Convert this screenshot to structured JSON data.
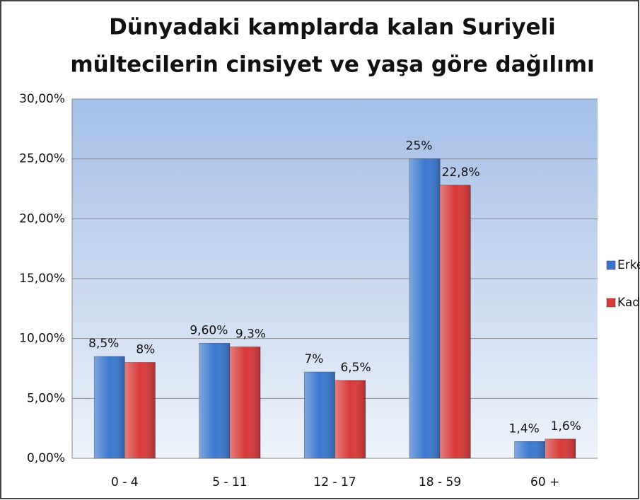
{
  "chart_data": {
    "type": "bar",
    "title": [
      "Dünyadaki kamplarda kalan Suriyeli",
      "mültecilerin cinsiyet ve yaşa göre dağılımı"
    ],
    "categories": [
      "0 - 4",
      "5 - 11",
      "12 - 17",
      "18 - 59",
      "60 +"
    ],
    "series": [
      {
        "name": "Erkek",
        "color": "#3c78d0",
        "values": [
          8.5,
          9.6,
          7.2,
          25,
          1.4
        ],
        "value_labels": [
          "8,5%",
          "9,60%",
          "7%",
          "25%",
          "1,4%"
        ]
      },
      {
        "name": "Kadın",
        "color": "#d83a3a",
        "values": [
          8,
          9.3,
          6.5,
          22.8,
          1.6
        ],
        "value_labels": [
          "8%",
          "9,3%",
          "6,5%",
          "22,8%",
          "1,6%"
        ]
      }
    ],
    "ylim": [
      0,
      30
    ],
    "yticks": [
      {
        "value": 0,
        "label": "0,00%"
      },
      {
        "value": 5,
        "label": "5,00%"
      },
      {
        "value": 10,
        "label": "10,00%"
      },
      {
        "value": 15,
        "label": "15,00%"
      },
      {
        "value": 20,
        "label": "20,00%"
      },
      {
        "value": 25,
        "label": "25,00%"
      },
      {
        "value": 30,
        "label": "30,00%"
      }
    ],
    "grid": true,
    "legend": "right"
  }
}
